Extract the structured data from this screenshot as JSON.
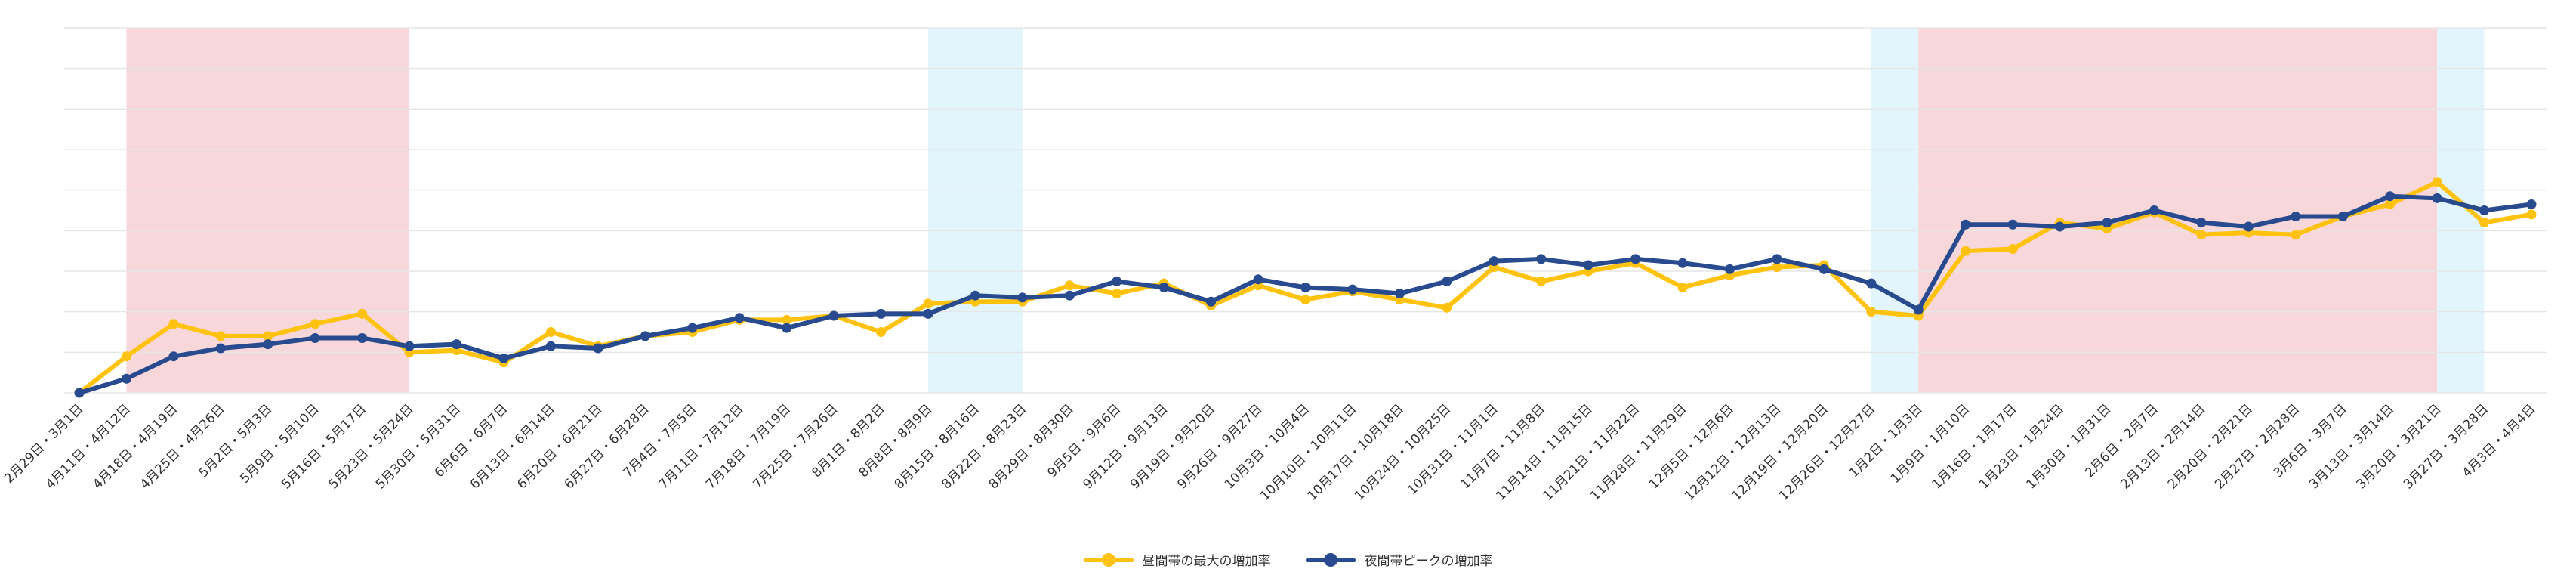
{
  "colors": {
    "series_day": "#FFC20E",
    "series_night": "#284A8E",
    "band_pink": "#F7D7DA",
    "band_blue": "#E3F5FC",
    "grid": "#E6E6E6"
  },
  "chart_data": {
    "type": "line",
    "title": "",
    "xlabel": "",
    "ylabel": "",
    "ylim": [
      0,
      9
    ],
    "grid": true,
    "legend_position": "bottom",
    "categories": [
      "2月29日・3月1日",
      "4月11日・4月12日",
      "4月18日・4月19日",
      "4月25日・4月26日",
      "5月2日・5月3日",
      "5月9日・5月10日",
      "5月16日・5月17日",
      "5月23日・5月24日",
      "5月30日・5月31日",
      "6月6日・6月7日",
      "6月13日・6月14日",
      "6月20日・6月21日",
      "6月27日・6月28日",
      "7月4日・7月5日",
      "7月11日・7月12日",
      "7月18日・7月19日",
      "7月25日・7月26日",
      "8月1日・8月2日",
      "8月8日・8月9日",
      "8月15日・8月16日",
      "8月22日・8月23日",
      "8月29日・8月30日",
      "9月5日・9月6日",
      "9月12日・9月13日",
      "9月19日・9月20日",
      "9月26日・9月27日",
      "10月3日・10月4日",
      "10月10日・10月11日",
      "10月17日・10月18日",
      "10月24日・10月25日",
      "10月31日・11月1日",
      "11月7日・11月8日",
      "11月14日・11月15日",
      "11月21日・11月22日",
      "11月28日・11月29日",
      "12月5日・12月6日",
      "12月12日・12月13日",
      "12月19日・12月20日",
      "12月26日・12月27日",
      "1月2日・1月3日",
      "1月9日・1月10日",
      "1月16日・1月17日",
      "1月23日・1月24日",
      "1月30日・1月31日",
      "2月6日・2月7日",
      "2月13日・2月14日",
      "2月20日・2月21日",
      "2月27日・2月28日",
      "3月6日・3月7日",
      "3月13日・3月14日",
      "3月20日・3月21日",
      "3月27日・3月28日",
      "4月3日・4月4日"
    ],
    "bands": [
      {
        "from": "4月11日・4月12日",
        "to": "5月23日・5月24日",
        "color": "band_pink"
      },
      {
        "from": "8月8日・8月9日",
        "to": "8月22日・8月23日",
        "color": "band_blue"
      },
      {
        "from": "12月26日・12月27日",
        "to": "1月2日・1月3日",
        "color": "band_blue"
      },
      {
        "from": "1月2日・1月3日",
        "to": "3月20日・3月21日",
        "color": "band_pink"
      },
      {
        "from": "3月20日・3月21日",
        "to": "3月27日・3月28日",
        "color": "band_blue"
      }
    ],
    "series": [
      {
        "name": "昼間帯の最大の増加率",
        "color": "series_day",
        "values": [
          0,
          0.9,
          1.7,
          1.4,
          1.4,
          1.7,
          1.95,
          1.0,
          1.05,
          0.75,
          1.5,
          1.15,
          1.4,
          1.5,
          1.8,
          1.8,
          1.9,
          1.5,
          2.2,
          2.25,
          2.25,
          2.65,
          2.45,
          2.7,
          2.15,
          2.65,
          2.3,
          2.5,
          2.3,
          2.1,
          3.1,
          2.75,
          3.0,
          3.2,
          2.6,
          2.9,
          3.1,
          3.15,
          2.0,
          1.9,
          3.5,
          3.55,
          4.2,
          4.05,
          4.45,
          3.9,
          3.95,
          3.9,
          4.35,
          4.65,
          5.2,
          4.2,
          4.4
        ]
      },
      {
        "name": "夜間帯ピークの増加率",
        "color": "series_night",
        "values": [
          0,
          0.35,
          0.9,
          1.1,
          1.2,
          1.35,
          1.35,
          1.15,
          1.2,
          0.85,
          1.15,
          1.1,
          1.4,
          1.6,
          1.85,
          1.6,
          1.9,
          1.95,
          1.95,
          2.4,
          2.35,
          2.4,
          2.75,
          2.6,
          2.25,
          2.8,
          2.6,
          2.55,
          2.45,
          2.75,
          3.25,
          3.3,
          3.15,
          3.3,
          3.2,
          3.05,
          3.3,
          3.05,
          2.7,
          2.05,
          4.15,
          4.15,
          4.1,
          4.2,
          4.5,
          4.2,
          4.1,
          4.35,
          4.35,
          4.85,
          4.8,
          4.5,
          4.65
        ]
      }
    ]
  }
}
